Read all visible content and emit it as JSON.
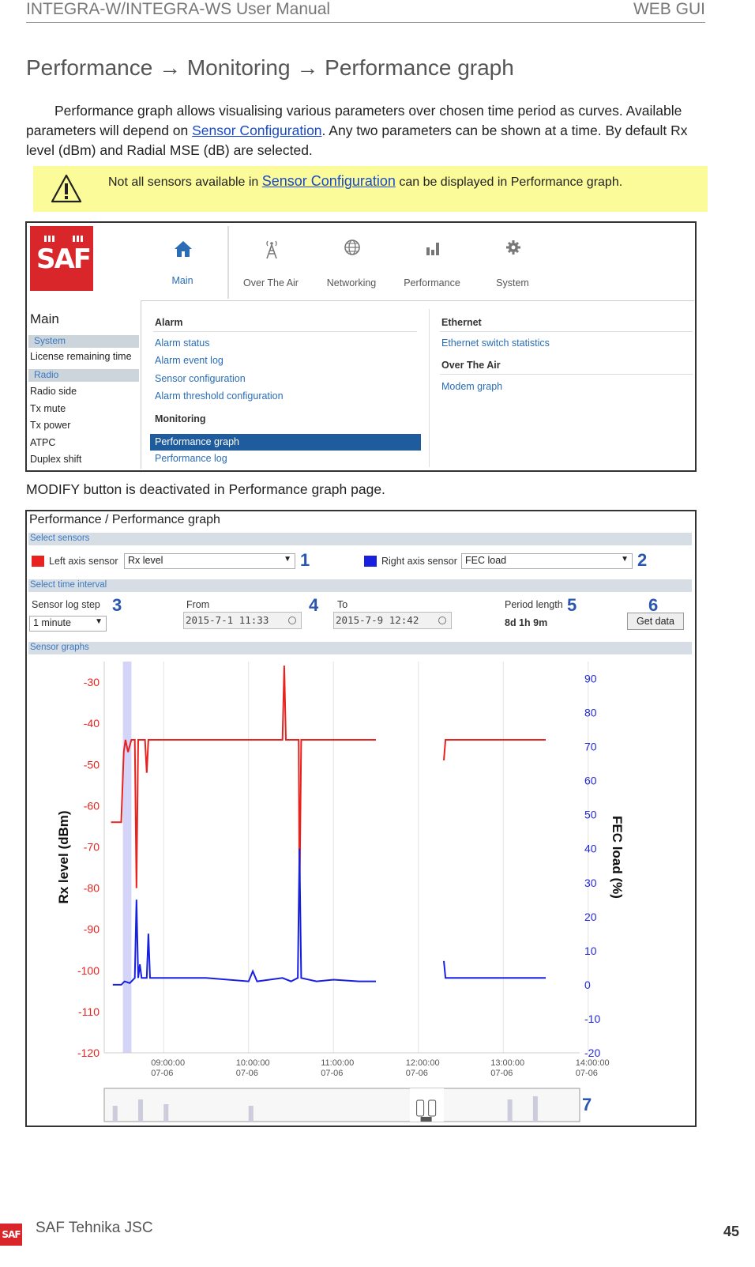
{
  "header": {
    "left": "INTEGRA-W/INTEGRA-WS User Manual",
    "right": "WEB GUI"
  },
  "section_title": "Performance → Monitoring → Performance graph",
  "intro": {
    "part1": "Performance graph allows visualising various parameters over chosen time period as curves. Available parameters will depend on ",
    "link": "Sensor Configuration",
    "part2": ". Any two parameters can be shown at a time. By default Rx level (dBm) and Radial MSE (dB) are selected."
  },
  "note": {
    "icon": "warning-icon",
    "part1": "Not all sensors available in ",
    "link": "Sensor Configuration",
    "part2": " can be displayed in Performance graph."
  },
  "screenshot1": {
    "logo": "SAF",
    "nav": [
      {
        "label": "Main",
        "icon": "home-icon"
      },
      {
        "label": "Over The Air",
        "icon": "antenna-icon"
      },
      {
        "label": "Networking",
        "icon": "globe-icon"
      },
      {
        "label": "Performance",
        "icon": "bar-chart-icon"
      },
      {
        "label": "System",
        "icon": "gear-icon"
      }
    ],
    "sidebar": {
      "title": "Main",
      "sections": [
        {
          "label": "System",
          "items": [
            "License remaining time"
          ]
        },
        {
          "label": "Radio",
          "items": [
            "Radio side",
            "Tx mute",
            "Tx power",
            "ATPC",
            "Duplex shift"
          ]
        }
      ]
    },
    "menu": {
      "alarm_title": "Alarm",
      "alarm_links": [
        "Alarm status",
        "Alarm event log",
        "Sensor configuration",
        "Alarm threshold configuration"
      ],
      "monitoring_title": "Monitoring",
      "monitoring_links": [
        "Performance graph",
        "Performance log"
      ],
      "ethernet_title": "Ethernet",
      "ethernet_links": [
        "Ethernet switch statistics"
      ],
      "ota_title": "Over The Air",
      "ota_links": [
        "Modem graph"
      ]
    }
  },
  "caption2": "MODIFY button is deactivated in Performance graph page.",
  "screenshot2": {
    "title": "Performance / Performance graph",
    "select_sensors": "Select sensors",
    "left_axis_label": "Left axis sensor",
    "left_axis_value": "Rx level",
    "left_color": "#e8221e",
    "right_axis_label": "Right axis sensor",
    "right_axis_value": "FEC load",
    "right_color": "#1820e0",
    "select_time": "Select time interval",
    "log_step_label": "Sensor log step",
    "log_step_value": "1 minute",
    "from_label": "From",
    "from_value": "2015-7-1 11:33",
    "to_label": "To",
    "to_value": "2015-7-9 12:42",
    "period_label": "Period length",
    "period_value": "8d 1h 9m",
    "get_data": "Get data",
    "sensor_graphs": "Sensor graphs",
    "callouts": [
      "1",
      "2",
      "3",
      "4",
      "5",
      "6",
      "7"
    ]
  },
  "chart_data": {
    "type": "line",
    "ylabel": "Rx level (dBm)",
    "y2label": "FEC load (%)",
    "ylim": [
      -120,
      -25
    ],
    "y2lim": [
      -20,
      95
    ],
    "yticks": [
      -30,
      -40,
      -50,
      -60,
      -70,
      -80,
      -90,
      -100,
      -110,
      -120
    ],
    "y2ticks": [
      90,
      80,
      70,
      60,
      50,
      40,
      30,
      20,
      10,
      0,
      -10,
      -20
    ],
    "x_tick_labels": [
      [
        "09:00:00",
        "07-06"
      ],
      [
        "10:00:00",
        "07-06"
      ],
      [
        "11:00:00",
        "07-06"
      ],
      [
        "12:00:00",
        "07-06"
      ],
      [
        "13:00:00",
        "07-06"
      ],
      [
        "14:00:00",
        "07-06"
      ]
    ],
    "x_unit": "hours since 09:00 on 07-06",
    "xlim": [
      -0.7,
      4.9
    ],
    "grid": true,
    "series": [
      {
        "name": "Rx level",
        "axis": "left",
        "color": "#e8221e",
        "segments": [
          [
            [
              -0.62,
              -64
            ],
            [
              -0.5,
              -64
            ],
            [
              -0.47,
              -47
            ],
            [
              -0.45,
              -44
            ],
            [
              -0.42,
              -47
            ],
            [
              -0.38,
              -44
            ],
            [
              -0.34,
              -44
            ],
            [
              -0.32,
              -80
            ],
            [
              -0.3,
              -44
            ],
            [
              -0.22,
              -44
            ],
            [
              -0.2,
              -52
            ],
            [
              -0.18,
              -44
            ],
            [
              0.0,
              -44
            ],
            [
              1.0,
              -44
            ],
            [
              1.05,
              -44
            ],
            [
              1.4,
              -44
            ],
            [
              1.42,
              -26
            ],
            [
              1.44,
              -44
            ],
            [
              1.59,
              -44
            ],
            [
              1.6,
              -84
            ],
            [
              1.62,
              -44
            ],
            [
              2.0,
              -44
            ],
            [
              2.5,
              -44
            ]
          ],
          [
            [
              3.3,
              -49
            ],
            [
              3.32,
              -44
            ],
            [
              4.0,
              -44
            ],
            [
              4.5,
              -44
            ]
          ]
        ]
      },
      {
        "name": "FEC load",
        "axis": "right",
        "color": "#1820e0",
        "segments": [
          [
            [
              -0.6,
              0
            ],
            [
              -0.5,
              0
            ],
            [
              -0.46,
              1
            ],
            [
              -0.4,
              0.5
            ],
            [
              -0.34,
              2
            ],
            [
              -0.32,
              25
            ],
            [
              -0.3,
              2
            ],
            [
              -0.28,
              6
            ],
            [
              -0.26,
              2
            ],
            [
              -0.2,
              2
            ],
            [
              -0.18,
              15
            ],
            [
              -0.16,
              2
            ],
            [
              0.0,
              2
            ],
            [
              0.5,
              2
            ],
            [
              1.0,
              1
            ],
            [
              1.05,
              4
            ],
            [
              1.1,
              1
            ],
            [
              1.4,
              2
            ],
            [
              1.5,
              1
            ],
            [
              1.58,
              2
            ],
            [
              1.6,
              40
            ],
            [
              1.62,
              2
            ],
            [
              1.8,
              1
            ],
            [
              2.0,
              1.5
            ],
            [
              2.3,
              1
            ],
            [
              2.5,
              1
            ]
          ],
          [
            [
              3.3,
              7
            ],
            [
              3.32,
              2
            ],
            [
              4.0,
              2
            ],
            [
              4.5,
              2
            ]
          ]
        ]
      }
    ]
  },
  "footer": {
    "company": "SAF Tehnika JSC",
    "page": "45",
    "logo": "SAF"
  }
}
